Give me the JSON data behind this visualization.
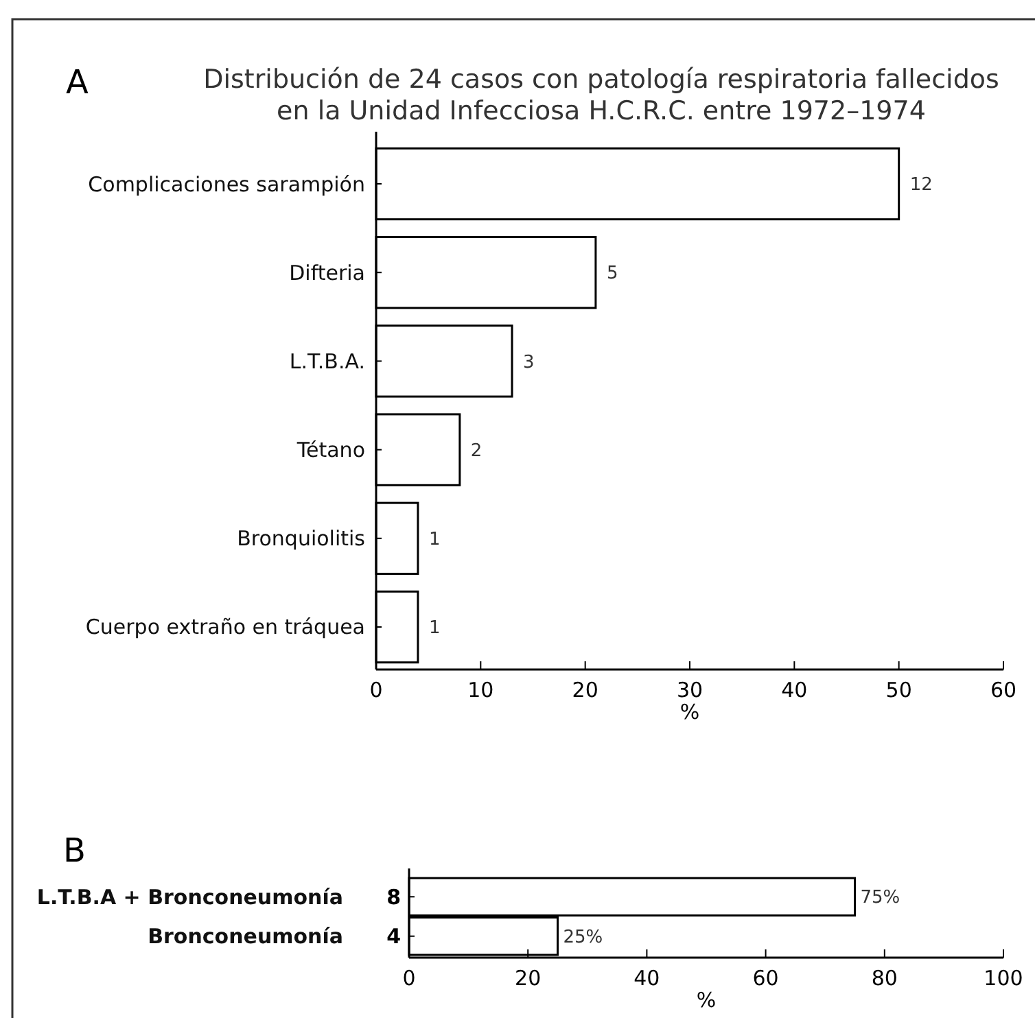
{
  "chart_data": [
    {
      "type": "bar",
      "orientation": "horizontal",
      "title": "Distribución de 24 casos con patología respiratoria fallecidos\nen la Unidad Infecciosa H.C.R.C. entre 1972–1974",
      "xlabel": "%",
      "annotations": [
        "A",
        {
          "text": "12",
          "x": 50,
          "y": "Complicaciones sarampión"
        },
        {
          "text": "5",
          "x": 21,
          "y": "Difteria"
        },
        {
          "text": "3",
          "x": 13,
          "y": "L.T.B.A."
        },
        {
          "text": "2",
          "x": 8,
          "y": "Tétano"
        },
        {
          "text": "1",
          "x": 4,
          "y": "Bronquiolitis"
        },
        {
          "text": "1",
          "x": 4,
          "y": "Cuerpo extraño en tráquea"
        }
      ],
      "categories": [
        "Complicaciones sarampión",
        "Difteria",
        "L.T.B.A.",
        "Tétano",
        "Bronquiolitis",
        "Cuerpo extraño en tráquea"
      ],
      "series": [
        {
          "color": "#ffffff",
          "values": [
            50,
            21,
            13,
            8,
            4,
            4
          ]
        }
      ],
      "xlim": [
        0,
        60
      ],
      "xticks": [
        0,
        10,
        20,
        30,
        40,
        50,
        60
      ]
    },
    {
      "type": "bar",
      "orientation": "horizontal",
      "xlabel": "%",
      "annotations": [
        "B",
        "8",
        "4"
      ],
      "categories": [
        "L.T.B.A + Bronconeumonía",
        "Bronconeumonía"
      ],
      "series": [
        {
          "color": "#ffffff",
          "values": [
            75,
            25
          ],
          "value_labels": [
            "75%",
            "25%"
          ]
        }
      ],
      "xlim": [
        0,
        100
      ],
      "xticks": [
        0,
        20,
        40,
        60,
        80,
        100
      ]
    }
  ]
}
